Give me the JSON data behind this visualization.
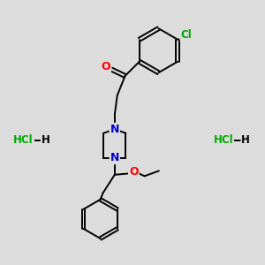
{
  "background_color": "#dcdcdc",
  "bond_color": "#000000",
  "atom_colors": {
    "N": "#0000cc",
    "O": "#ff0000",
    "Cl": "#00aa00",
    "C": "#000000",
    "H": "#000000"
  },
  "figsize": [
    3.0,
    3.0
  ],
  "dpi": 100
}
